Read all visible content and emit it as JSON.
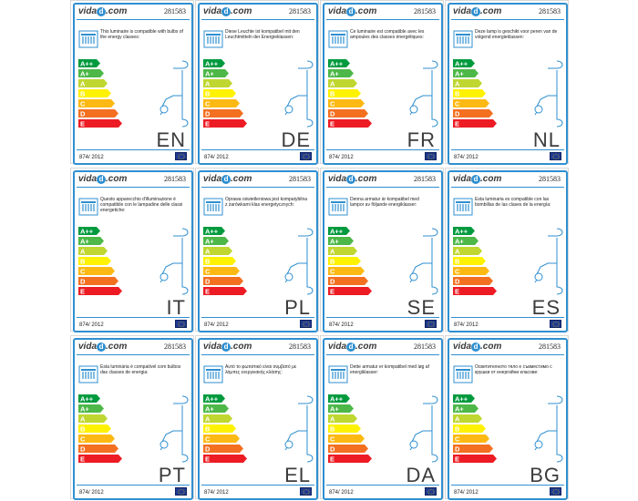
{
  "product_code": "281583",
  "brand": {
    "prefix": "vida",
    "mark": "d",
    "suffix": ".com"
  },
  "regulation": "874/ 2012",
  "energy_classes": [
    "A++",
    "A+",
    "A",
    "B",
    "C",
    "D",
    "E"
  ],
  "class_colors": [
    "#009a3e",
    "#4db848",
    "#bfd730",
    "#fff200",
    "#fdb913",
    "#f37021",
    "#ed1c24"
  ],
  "labels": [
    {
      "lang": "EN",
      "text": "This luminaire is compatible with bulbs of the energy classes:"
    },
    {
      "lang": "DE",
      "text": "Diese Leuchte ist kompatibel mit den Leuchtmitteln der Energieklassen:"
    },
    {
      "lang": "FR",
      "text": "Ce luminaire est compatible avec les ampoules des classes énergétiques:"
    },
    {
      "lang": "NL",
      "text": "Deze lamp is geschikt voor peren van de volgend energieklassen:"
    },
    {
      "lang": "IT",
      "text": "Questo apparecchio d'illuminazione è compatibile con le lampadine delle classi energetiche:"
    },
    {
      "lang": "PL",
      "text": "Oprawa oświetleniowa jest kompatybilna z żarówkami klas energetycznych:"
    },
    {
      "lang": "SE",
      "text": "Denna armatur är kompatibel med lampor av följande energiklasser:"
    },
    {
      "lang": "ES",
      "text": "Esta luminaria es compatible con las bombillas de las clases de la energía:"
    },
    {
      "lang": "PT",
      "text": "Esta luminária é compatível com bulbos das classes de energia:"
    },
    {
      "lang": "EL",
      "text": "Αυτό το φωτιστικό είναι συμβατό με λάμπες ενεργειακής κλάσης:"
    },
    {
      "lang": "DA",
      "text": "Dette armatur er kompatibel med løg af energiklasser:"
    },
    {
      "lang": "BG",
      "text": "Осветителното тяло е съвместимо с крушки от енергийни класове:"
    }
  ]
}
